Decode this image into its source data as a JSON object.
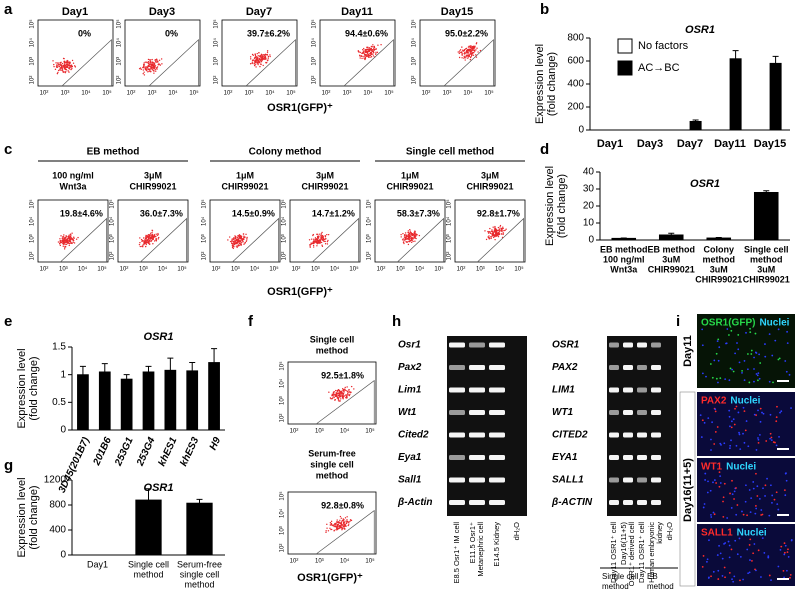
{
  "panel_labels": [
    "a",
    "b",
    "c",
    "d",
    "e",
    "f",
    "g",
    "h",
    "i"
  ],
  "chart_data": [
    {
      "type": "bar",
      "title": "OSR1",
      "ylabel": [
        "Expression level",
        "(fold change)"
      ],
      "categories": [
        "Day1",
        "Day3",
        "Day7",
        "Day11",
        "Day15"
      ],
      "series": [
        {
          "name": "No factors",
          "color": "#ffffff",
          "values": [
            0,
            0,
            0,
            0,
            0
          ],
          "errors": [
            0,
            0,
            0,
            0,
            0
          ]
        },
        {
          "name": "AC→BC",
          "color": "#000000",
          "values": [
            0,
            0,
            75,
            620,
            580
          ],
          "errors": [
            0,
            0,
            12,
            70,
            60
          ]
        }
      ],
      "ylim": [
        0,
        800
      ],
      "yticks": [
        0,
        200,
        400,
        600,
        800
      ],
      "legend": "upper left"
    },
    {
      "type": "bar",
      "title": "OSR1",
      "ylabel": [
        "Expression level",
        "(fold change)"
      ],
      "categories": [
        [
          "EB method",
          "100 ng/ml",
          "Wnt3a"
        ],
        [
          "EB method",
          "3uM",
          "CHIR99021"
        ],
        [
          "Colony",
          "method",
          "3uM",
          "CHIR99021"
        ],
        [
          "Single cell",
          "method",
          "3uM",
          "CHIR99021"
        ]
      ],
      "series": [
        {
          "name": "OSR1",
          "color": "#000000",
          "values": [
            1,
            3,
            1.2,
            28
          ],
          "errors": [
            0.2,
            1,
            0.3,
            1
          ]
        }
      ],
      "ylim": [
        0,
        40
      ],
      "yticks": [
        0,
        10,
        20,
        30,
        40
      ]
    },
    {
      "type": "bar",
      "title": "OSR1",
      "ylabel": [
        "Expression level",
        "(fold change)"
      ],
      "categories": [
        "3D45(201B7)",
        "201B6",
        "253G1",
        "253G4",
        "khES1",
        "khES3",
        "H9"
      ],
      "series": [
        {
          "name": "OSR1",
          "color": "#000000",
          "values": [
            1.0,
            1.05,
            0.92,
            1.05,
            1.08,
            1.07,
            1.22
          ],
          "errors": [
            0.15,
            0.15,
            0.08,
            0.1,
            0.22,
            0.15,
            0.25
          ]
        }
      ],
      "ylim": [
        0,
        1.5
      ],
      "yticks": [
        0,
        0.5,
        1,
        1.5
      ]
    },
    {
      "type": "bar",
      "title": "OSR1",
      "ylabel": [
        "Expression level",
        "(fold change)"
      ],
      "categories": [
        [
          "Day1"
        ],
        [
          "Single cell",
          "method"
        ],
        [
          "Serum-free",
          "single cell",
          "method"
        ]
      ],
      "series": [
        {
          "name": "OSR1",
          "color": "#000000",
          "values": [
            0,
            880,
            830
          ],
          "errors": [
            0,
            180,
            60
          ]
        }
      ],
      "ylim": [
        0,
        1200
      ],
      "yticks": [
        0,
        400,
        800,
        1200
      ]
    }
  ],
  "flow": {
    "axis_ticks": [
      "10²",
      "10³",
      "10⁴",
      "10⁵"
    ],
    "xlabel": "OSR1(GFP)⁺",
    "a": [
      {
        "title": "Day1",
        "percent": "0%"
      },
      {
        "title": "Day3",
        "percent": "0%"
      },
      {
        "title": "Day7",
        "percent": "39.7±6.2%"
      },
      {
        "title": "Day11",
        "percent": "94.4±0.6%"
      },
      {
        "title": "Day15",
        "percent": "95.0±2.2%"
      }
    ],
    "c": [
      {
        "name": "EB method",
        "conditions": [
          {
            "lines": [
              "100 ng/ml",
              "Wnt3a"
            ],
            "percent": "19.8±4.6%"
          },
          {
            "lines": [
              "3μM",
              "CHIR99021"
            ],
            "percent": "36.0±7.3%"
          }
        ]
      },
      {
        "name": "Colony method",
        "conditions": [
          {
            "lines": [
              "1μM",
              "CHIR99021"
            ],
            "percent": "14.5±0.9%"
          },
          {
            "lines": [
              "3μM",
              "CHIR99021"
            ],
            "percent": "14.7±1.2%"
          }
        ]
      },
      {
        "name": "Single cell method",
        "conditions": [
          {
            "lines": [
              "1μM",
              "CHIR99021"
            ],
            "percent": "58.3±7.3%"
          },
          {
            "lines": [
              "3μM",
              "CHIR99021"
            ],
            "percent": "92.8±1.7%"
          }
        ]
      }
    ],
    "f": [
      {
        "lines": [
          "Single cell",
          "method"
        ],
        "percent": "92.5±1.8%"
      },
      {
        "lines": [
          "Serum-free",
          "single cell",
          "method"
        ],
        "percent": "92.8±0.8%"
      }
    ]
  },
  "gel_h": {
    "left": {
      "genes": [
        "Osr1",
        "Pax2",
        "Lim1",
        "Wt1",
        "Cited2",
        "Eya1",
        "Sall1",
        "β-Actin"
      ],
      "lanes": [
        [
          "E8.5 Osr1⁺ IM cell"
        ],
        [
          "E11.5 Osr1⁺",
          "Metanephric cell"
        ],
        [
          "E14.5 Kidney"
        ],
        [
          "dH₂O"
        ]
      ]
    },
    "right": {
      "genes": [
        "OSR1",
        "PAX2",
        "LIM1",
        "WT1",
        "CITED2",
        "EYA1",
        "SALL1",
        "β-ACTIN"
      ],
      "lanes": [
        [
          "Day11 OSR1⁺ cell"
        ],
        [
          "Day16(11+5)",
          "OSR1⁺ derived cell"
        ],
        [
          "Day11 OSR1⁺ cell"
        ],
        [
          "Human embryonic",
          "kidney"
        ],
        [
          "dH₂O"
        ]
      ],
      "groups": [
        [
          "Single cell",
          "method"
        ],
        [
          "EB",
          "method"
        ]
      ]
    }
  },
  "image_i": {
    "days": [
      "Day11",
      "Day16(11+5)"
    ],
    "panels": [
      {
        "marker": "OSR1(GFP)",
        "stain": "Nuclei"
      },
      {
        "marker": "PAX2",
        "stain": "Nuclei"
      },
      {
        "marker": "WT1",
        "stain": "Nuclei"
      },
      {
        "marker": "SALL1",
        "stain": "Nuclei"
      }
    ]
  }
}
